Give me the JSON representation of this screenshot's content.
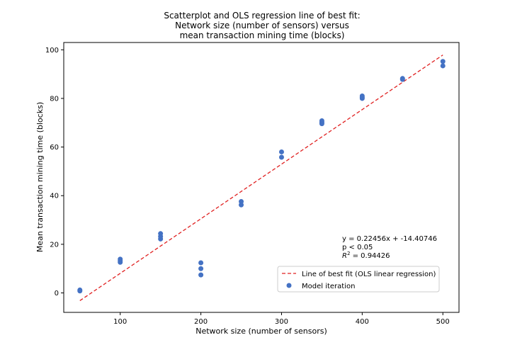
{
  "chart_data": {
    "type": "scatter",
    "title_lines": [
      "Scatterplot and OLS regression line of best fit:",
      "Network size (number of sensors) versus",
      "mean transaction mining time (blocks)"
    ],
    "xlabel": "Network size (number of sensors)",
    "ylabel": "Mean transaction mining time (blocks)",
    "xlim": [
      30,
      520
    ],
    "ylim": [
      -8,
      103
    ],
    "xticks": [
      100,
      200,
      300,
      400,
      500
    ],
    "yticks": [
      0,
      20,
      40,
      60,
      80,
      100
    ],
    "grid": false,
    "legend_position": "lower right",
    "series": [
      {
        "name": "Line of best fit (OLS linear regression)",
        "kind": "line",
        "style": "dashed",
        "color": "#e02020",
        "x": [
          50,
          500
        ],
        "y": [
          -3.18,
          97.87
        ]
      },
      {
        "name": "Model iteration",
        "kind": "scatter",
        "color": "#4472c4",
        "x": [
          50,
          50,
          100,
          100,
          100,
          150,
          150,
          150,
          200,
          200,
          200,
          250,
          250,
          300,
          300,
          350,
          350,
          350,
          400,
          400,
          400,
          450,
          450,
          500,
          500
        ],
        "y": [
          1.2,
          0.8,
          13.9,
          13.2,
          12.6,
          24.4,
          23.2,
          22.2,
          12.4,
          10.0,
          7.4,
          37.6,
          36.2,
          58.0,
          55.8,
          70.8,
          70.2,
          69.6,
          81.0,
          80.4,
          80.0,
          88.2,
          87.8,
          95.2,
          93.4
        ]
      }
    ],
    "annotations": {
      "equation": "y = 0.22456x + -14.40746",
      "pvalue": "p < 0.05",
      "r2_prefix": "R",
      "r2_sup": "2",
      "r2_suffix": " = 0.94426"
    }
  }
}
